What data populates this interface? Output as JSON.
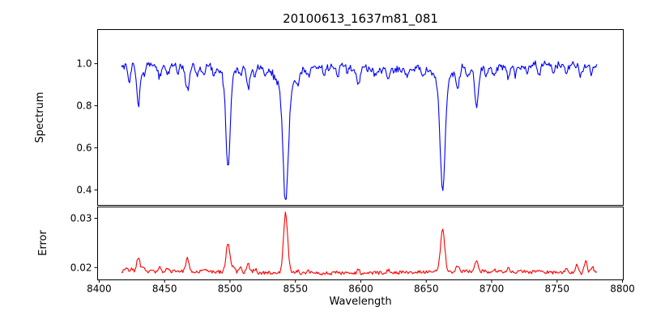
{
  "window": {
    "background": "#ffffff"
  },
  "chart_data": {
    "type": "line",
    "title": "20100613_1637m81_081",
    "xlabel": "Wavelength",
    "grid": false,
    "legend_position": "none",
    "xlim": [
      8398.8,
      8800.6
    ],
    "x_data_range": [
      8417,
      8781
    ],
    "x_sample_step": 0.7,
    "x_tick_values": [
      8400,
      8450,
      8500,
      8550,
      8600,
      8650,
      8700,
      8750,
      8800
    ],
    "x_tick_labels": [
      "8400",
      "8450",
      "8500",
      "8550",
      "8600",
      "8650",
      "8700",
      "8750",
      "8800"
    ],
    "panels": [
      {
        "name": "spectrum",
        "ylabel": "Spectrum",
        "color": "#0000ff",
        "ylim": [
          0.327,
          1.162
        ],
        "y_tick_values": [
          0.4,
          0.6,
          0.8,
          1.0
        ],
        "y_tick_labels": [
          "0.4",
          "0.6",
          "0.8",
          "1.0"
        ],
        "continuum": 0.985,
        "noise_amplitude": 0.016,
        "absorption_lines": [
          {
            "c": 8423,
            "d": 0.07,
            "w": 1.1
          },
          {
            "c": 8430,
            "d": 0.19,
            "w": 1.3
          },
          {
            "c": 8434,
            "d": 0.05,
            "w": 1.0
          },
          {
            "c": 8446,
            "d": 0.06,
            "w": 1.1
          },
          {
            "c": 8452,
            "d": 0.05,
            "w": 1.0
          },
          {
            "c": 8460,
            "d": 0.03,
            "w": 1.0
          },
          {
            "c": 8467.5,
            "d": 0.11,
            "w": 1.4
          },
          {
            "c": 8475,
            "d": 0.04,
            "w": 1.0
          },
          {
            "c": 8480,
            "d": 0.05,
            "w": 1.0
          },
          {
            "c": 8488,
            "d": 0.04,
            "w": 1.0
          },
          {
            "c": 8498.5,
            "d": 0.42,
            "w": 1.6
          },
          {
            "c": 8498.5,
            "d": 0.075,
            "w": 5.0
          },
          {
            "c": 8508,
            "d": 0.04,
            "w": 1.0
          },
          {
            "c": 8514,
            "d": 0.11,
            "w": 1.2
          },
          {
            "c": 8519,
            "d": 0.06,
            "w": 1.0
          },
          {
            "c": 8527,
            "d": 0.04,
            "w": 1.0
          },
          {
            "c": 8542.5,
            "d": 0.55,
            "w": 2.0
          },
          {
            "c": 8542.5,
            "d": 0.09,
            "w": 7.0
          },
          {
            "c": 8552,
            "d": 0.04,
            "w": 1.0
          },
          {
            "c": 8560,
            "d": 0.04,
            "w": 1.0
          },
          {
            "c": 8572,
            "d": 0.03,
            "w": 1.0
          },
          {
            "c": 8582,
            "d": 0.05,
            "w": 1.0
          },
          {
            "c": 8590,
            "d": 0.03,
            "w": 1.0
          },
          {
            "c": 8598,
            "d": 0.09,
            "w": 1.3
          },
          {
            "c": 8611,
            "d": 0.04,
            "w": 1.0
          },
          {
            "c": 8621,
            "d": 0.06,
            "w": 1.1
          },
          {
            "c": 8636,
            "d": 0.03,
            "w": 1.0
          },
          {
            "c": 8648,
            "d": 0.04,
            "w": 1.0
          },
          {
            "c": 8662.5,
            "d": 0.52,
            "w": 1.8
          },
          {
            "c": 8662.5,
            "d": 0.08,
            "w": 6.0
          },
          {
            "c": 8674,
            "d": 0.1,
            "w": 1.2
          },
          {
            "c": 8682,
            "d": 0.05,
            "w": 1.0
          },
          {
            "c": 8688.5,
            "d": 0.19,
            "w": 1.4
          },
          {
            "c": 8696,
            "d": 0.04,
            "w": 1.0
          },
          {
            "c": 8702,
            "d": 0.04,
            "w": 1.0
          },
          {
            "c": 8713,
            "d": 0.05,
            "w": 1.0
          },
          {
            "c": 8718,
            "d": 0.04,
            "w": 1.0
          },
          {
            "c": 8727,
            "d": 0.03,
            "w": 1.0
          },
          {
            "c": 8736,
            "d": 0.05,
            "w": 1.0
          },
          {
            "c": 8747,
            "d": 0.04,
            "w": 1.0
          },
          {
            "c": 8757,
            "d": 0.05,
            "w": 1.0
          },
          {
            "c": 8768,
            "d": 0.04,
            "w": 1.0
          },
          {
            "c": 8776,
            "d": 0.04,
            "w": 1.0
          }
        ]
      },
      {
        "name": "error",
        "ylabel": "Error",
        "color": "#ff0000",
        "ylim": [
          0.0175,
          0.0323
        ],
        "y_tick_values": [
          0.02,
          0.03
        ],
        "y_tick_labels": [
          "0.02",
          "0.03"
        ],
        "baseline": 0.019,
        "noise_amplitude": 0.00035,
        "peaks": [
          {
            "c": 8421,
            "h": 0.001,
            "w": 1.2
          },
          {
            "c": 8425,
            "h": 0.0008,
            "w": 1.0
          },
          {
            "c": 8430,
            "h": 0.003,
            "w": 1.2
          },
          {
            "c": 8434,
            "h": 0.0008,
            "w": 1.0
          },
          {
            "c": 8446,
            "h": 0.0008,
            "w": 1.0
          },
          {
            "c": 8452,
            "h": 0.0006,
            "w": 1.0
          },
          {
            "c": 8467.5,
            "h": 0.0026,
            "w": 1.3
          },
          {
            "c": 8480,
            "h": 0.0006,
            "w": 1.0
          },
          {
            "c": 8498.5,
            "h": 0.006,
            "w": 1.5
          },
          {
            "c": 8503,
            "h": 0.001,
            "w": 1.0
          },
          {
            "c": 8508,
            "h": 0.0008,
            "w": 1.0
          },
          {
            "c": 8514,
            "h": 0.0016,
            "w": 1.1
          },
          {
            "c": 8519,
            "h": 0.0008,
            "w": 1.0
          },
          {
            "c": 8542.5,
            "h": 0.0122,
            "w": 1.6
          },
          {
            "c": 8552,
            "h": 0.0005,
            "w": 1.0
          },
          {
            "c": 8560,
            "h": 0.0005,
            "w": 1.0
          },
          {
            "c": 8582,
            "h": 0.0005,
            "w": 1.0
          },
          {
            "c": 8598,
            "h": 0.0007,
            "w": 1.0
          },
          {
            "c": 8621,
            "h": 0.0005,
            "w": 1.0
          },
          {
            "c": 8662.5,
            "h": 0.0086,
            "w": 1.6
          },
          {
            "c": 8674,
            "h": 0.0012,
            "w": 1.0
          },
          {
            "c": 8688.5,
            "h": 0.002,
            "w": 1.3
          },
          {
            "c": 8702,
            "h": 0.0005,
            "w": 1.0
          },
          {
            "c": 8713,
            "h": 0.0006,
            "w": 1.0
          },
          {
            "c": 8736,
            "h": 0.0005,
            "w": 1.0
          },
          {
            "c": 8757,
            "h": 0.0009,
            "w": 1.0
          },
          {
            "c": 8765,
            "h": 0.0018,
            "w": 1.1
          },
          {
            "c": 8772,
            "h": 0.0026,
            "w": 1.1
          },
          {
            "c": 8777,
            "h": 0.0014,
            "w": 1.0
          }
        ]
      }
    ]
  }
}
